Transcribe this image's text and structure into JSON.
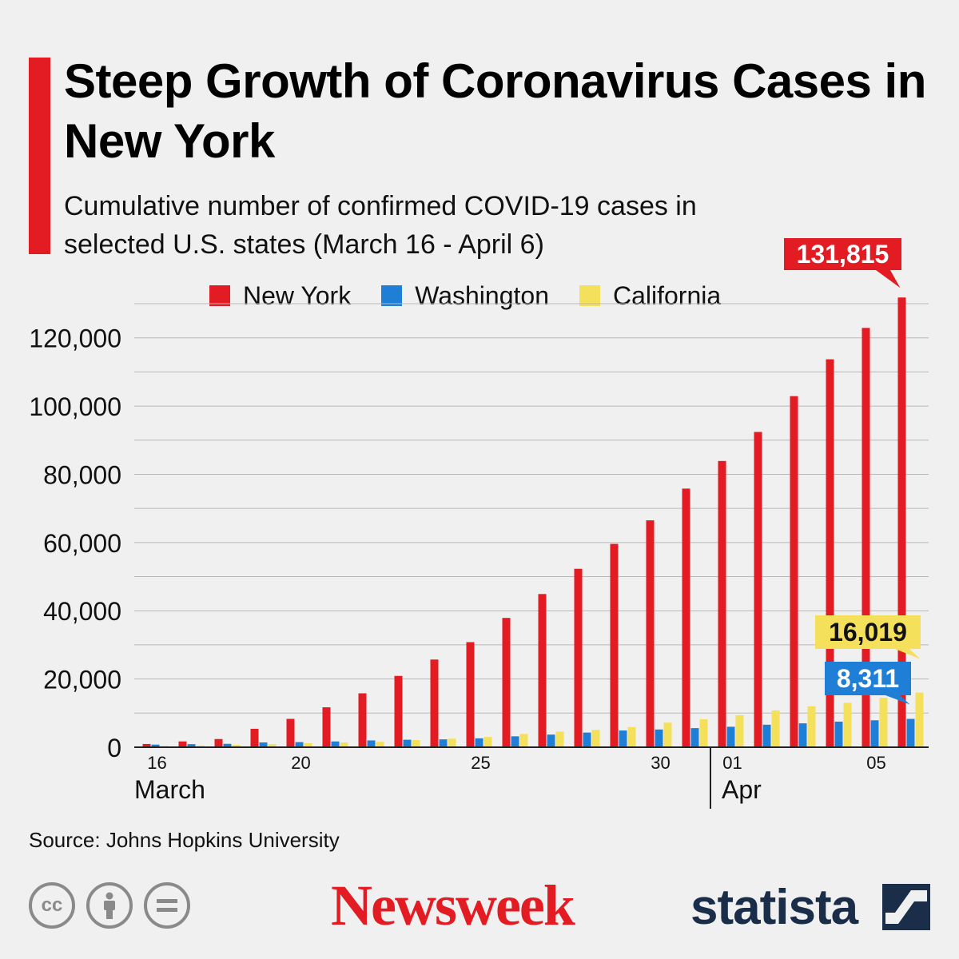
{
  "header": {
    "title": "Steep Growth of Coronavirus Cases in New York",
    "subtitle": "Cumulative number of confirmed COVID-19 cases in selected U.S. states (March 16 - April 6)"
  },
  "colors": {
    "accent": "#e31c24",
    "new_york": "#e31c24",
    "washington": "#1f7fd6",
    "california": "#f4e05a",
    "grid": "#b8b8b8",
    "background": "#f0f0f0"
  },
  "footer": {
    "source": "Source: Johns Hopkins University",
    "newsweek": "Newsweek",
    "statista": "statista",
    "cc_icons": [
      "cc-icon",
      "attribution-icon",
      "no-derivatives-icon"
    ]
  },
  "chart_data": {
    "type": "bar",
    "x": [
      "2020-03-16",
      "2020-03-17",
      "2020-03-18",
      "2020-03-19",
      "2020-03-20",
      "2020-03-21",
      "2020-03-22",
      "2020-03-23",
      "2020-03-24",
      "2020-03-25",
      "2020-03-26",
      "2020-03-27",
      "2020-03-28",
      "2020-03-29",
      "2020-03-30",
      "2020-03-31",
      "2020-04-01",
      "2020-04-02",
      "2020-04-03",
      "2020-04-04",
      "2020-04-05",
      "2020-04-06"
    ],
    "tick_labels": [
      {
        "index": 0,
        "label": "16"
      },
      {
        "index": 4,
        "label": "20"
      },
      {
        "index": 9,
        "label": "25"
      },
      {
        "index": 14,
        "label": "30"
      },
      {
        "index": 16,
        "label": "01"
      },
      {
        "index": 20,
        "label": "05"
      }
    ],
    "month_labels": [
      {
        "index": 0,
        "label": "March"
      },
      {
        "index": 16,
        "label": "Apr"
      }
    ],
    "series": [
      {
        "name": "New York",
        "color": "#e31c24",
        "values": [
          950,
          1700,
          2400,
          5400,
          8300,
          11700,
          15800,
          20900,
          25700,
          30800,
          37900,
          44900,
          52300,
          59600,
          66500,
          75800,
          83900,
          92400,
          102900,
          113700,
          122900,
          131815
        ]
      },
      {
        "name": "Washington",
        "color": "#1f7fd6",
        "values": [
          770,
          900,
          1000,
          1400,
          1500,
          1700,
          2000,
          2200,
          2300,
          2600,
          3200,
          3700,
          4300,
          4900,
          5200,
          5600,
          6000,
          6600,
          7000,
          7500,
          7900,
          8311
        ]
      },
      {
        "name": "California",
        "color": "#f4e05a",
        "values": [
          400,
          500,
          700,
          900,
          1200,
          1400,
          1600,
          2100,
          2500,
          3000,
          3900,
          4600,
          5100,
          5900,
          7200,
          8200,
          9400,
          10800,
          12000,
          13000,
          14500,
          16019
        ]
      }
    ],
    "callouts": [
      {
        "series": 0,
        "label": "131,815"
      },
      {
        "series": 2,
        "label": "16,019"
      },
      {
        "series": 1,
        "label": "8,311"
      }
    ],
    "y_ticks": [
      0,
      20000,
      40000,
      60000,
      80000,
      100000,
      120000
    ],
    "y_tick_labels": [
      "0",
      "20,000",
      "40,000",
      "60,000",
      "80,000",
      "100,000",
      "120,000"
    ],
    "ylim": [
      0,
      130000
    ],
    "grid": true,
    "legend_position": "top"
  }
}
